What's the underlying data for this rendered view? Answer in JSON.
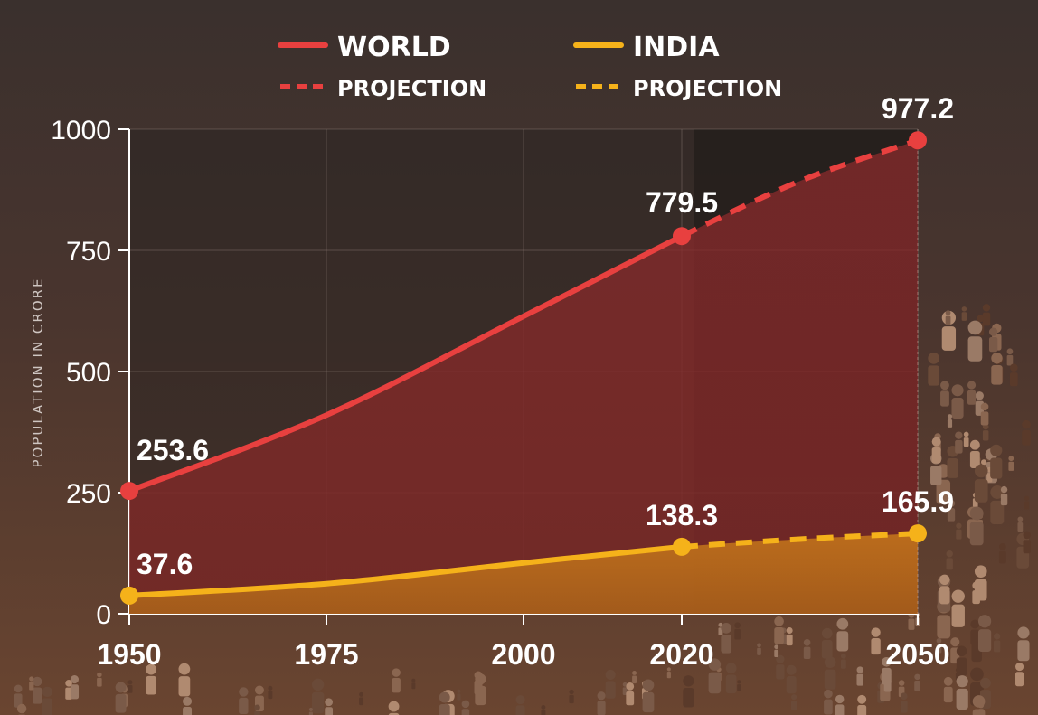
{
  "chart_data": {
    "type": "line",
    "x": [
      1950,
      1975,
      2000,
      2020,
      2050
    ],
    "xticks": [
      "1950",
      "1975",
      "2000",
      "2020",
      "2050"
    ],
    "yticks": [
      0,
      250,
      500,
      750,
      1000
    ],
    "ylim": [
      0,
      1000
    ],
    "ylabel": "POPULATION IN CRORE",
    "legend": {
      "world": "WORLD",
      "world_projection": "PROJECTION",
      "india": "INDIA",
      "india_projection": "PROJECTION"
    },
    "series": [
      {
        "name": "WORLD",
        "color": "#e8403f",
        "points": [
          [
            1950,
            253.6
          ],
          [
            1975,
            410
          ],
          [
            2000,
            614
          ],
          [
            2020,
            779.5
          ]
        ],
        "projection": [
          [
            2020,
            779.5
          ],
          [
            2035,
            893
          ],
          [
            2050,
            977.2
          ]
        ],
        "labels": [
          {
            "x": 1950,
            "y": 253.6,
            "text": "253.6"
          },
          {
            "x": 2020,
            "y": 779.5,
            "text": "779.5"
          },
          {
            "x": 2050,
            "y": 977.2,
            "text": "977.2"
          }
        ]
      },
      {
        "name": "INDIA",
        "color": "#f5b21a",
        "points": [
          [
            1950,
            37.6
          ],
          [
            1975,
            62
          ],
          [
            2000,
            105
          ],
          [
            2020,
            138.3
          ]
        ],
        "projection": [
          [
            2020,
            138.3
          ],
          [
            2035,
            154
          ],
          [
            2050,
            165.9
          ]
        ],
        "labels": [
          {
            "x": 1950,
            "y": 37.6,
            "text": "37.6"
          },
          {
            "x": 2020,
            "y": 138.3,
            "text": "138.3"
          },
          {
            "x": 2050,
            "y": 165.9,
            "text": "165.9"
          }
        ]
      }
    ],
    "projection_start": 2020,
    "grid": true
  }
}
